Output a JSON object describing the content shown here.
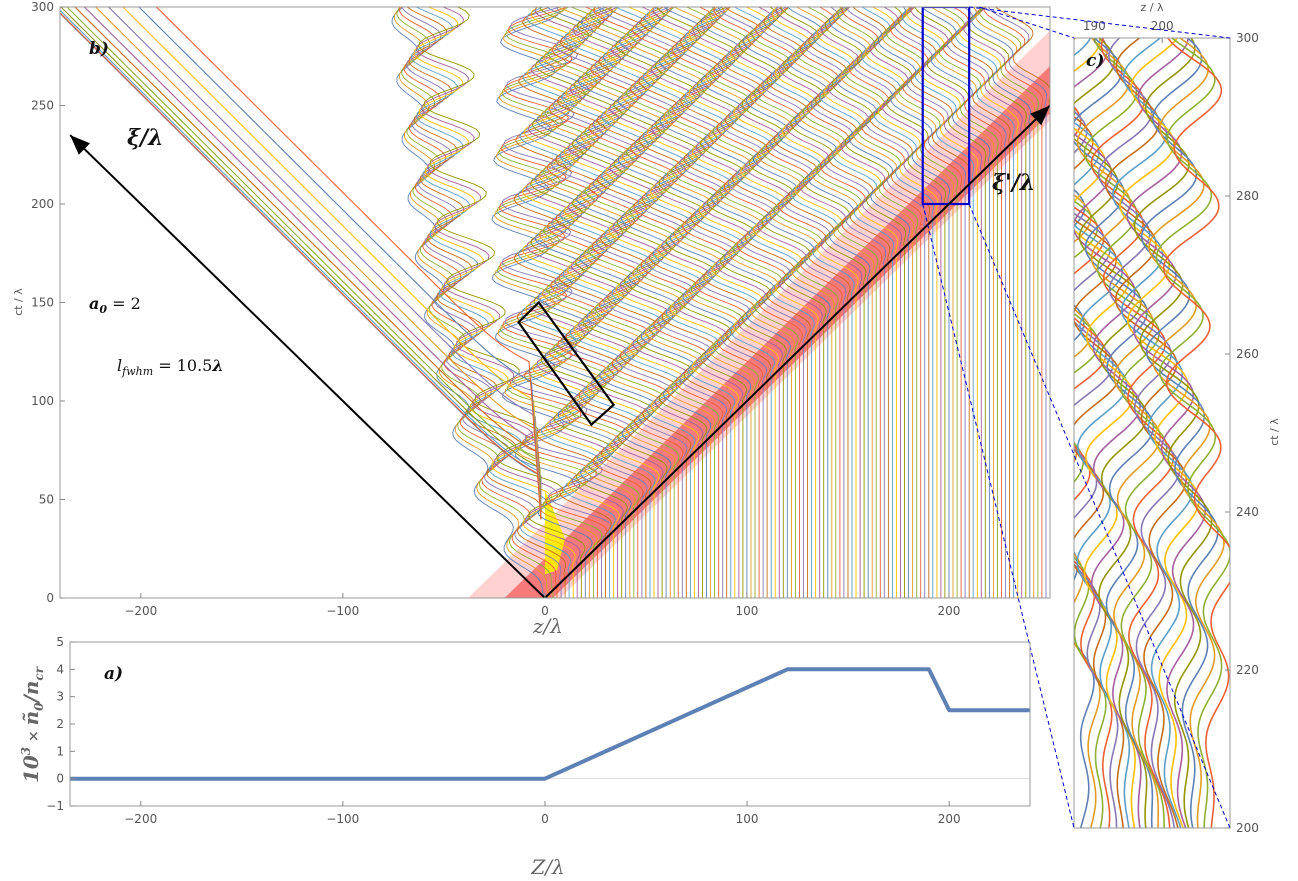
{
  "colors": {
    "trajectory_palette": [
      "#5e81b5",
      "#e19c24",
      "#8fb032",
      "#eb6235",
      "#8778b3",
      "#c56e1a",
      "#5d9ec7",
      "#ffbf00",
      "#a5609d",
      "#929600"
    ],
    "density_line": "#5e81b5",
    "laser_band": "#ff9a9a",
    "laser_core": "#ee3333",
    "yellow_region": "#ffee00",
    "zoom_box": "#0000cc",
    "black_box": "#000000"
  },
  "chart_data": [
    {
      "id": "b",
      "type": "line",
      "panel_label": "b)",
      "xlabel": "z/λ",
      "ylabel": "ct / λ",
      "xlim": [
        -240,
        250
      ],
      "ylim": [
        0,
        300
      ],
      "xticks": [
        "−200",
        "−100",
        "0",
        "100",
        "200"
      ],
      "xtick_values": [
        -200,
        -100,
        0,
        100,
        200
      ],
      "yticks": [
        "0",
        "50",
        "100",
        "150",
        "200",
        "250",
        "300"
      ],
      "ytick_values": [
        0,
        50,
        100,
        150,
        200,
        250,
        300
      ],
      "annotations": {
        "a0_label": "a",
        "a0_sub": "0",
        "a0_value": " = 2",
        "lfwhm_label": "l",
        "lfwhm_sub": "fwhm",
        "lfwhm_value": " = 10.5",
        "lfwhm_unit": "λ",
        "xi_label": "ξ/λ",
        "xi_prime_label": "ξ'/λ"
      },
      "arrows": [
        {
          "from": [
            0,
            0
          ],
          "to": [
            -235,
            235
          ]
        },
        {
          "from": [
            0,
            0
          ],
          "to": [
            250,
            250
          ]
        }
      ],
      "black_box_corners": [
        [
          -13,
          140
        ],
        [
          -3,
          150
        ],
        [
          34,
          98
        ],
        [
          23,
          88
        ]
      ],
      "zoom_box": {
        "z": [
          187,
          210
        ],
        "ct": [
          200,
          300
        ]
      },
      "reflected_bundle": {
        "n_lines": 12,
        "start_ct_range": [
          62,
          120
        ],
        "z_at_top": [
          -240,
          -190
        ]
      },
      "forward_electrons": {
        "z_spacing": 2,
        "z_range": [
          0,
          250
        ],
        "oscillation_period_ct": 30
      }
    },
    {
      "id": "a",
      "type": "line",
      "panel_label": "a)",
      "xlabel": "Z/λ",
      "ylabel_prefix": "10",
      "ylabel_exp": "3",
      "ylabel_times": " × ",
      "ylabel_n": "ñ",
      "ylabel_n_sub": "0",
      "ylabel_slash": "/",
      "ylabel_ncr": "n",
      "ylabel_ncr_sub": "cr",
      "xlim": [
        -235,
        240
      ],
      "ylim": [
        -1,
        5
      ],
      "xticks": [
        "−200",
        "−100",
        "0",
        "100",
        "200"
      ],
      "xtick_values": [
        -200,
        -100,
        0,
        100,
        200
      ],
      "yticks": [
        "−1",
        "0",
        "1",
        "2",
        "3",
        "4",
        "5"
      ],
      "ytick_values": [
        -1,
        0,
        1,
        2,
        3,
        4,
        5
      ],
      "series": [
        {
          "x": [
            -235,
            0,
            120,
            190,
            200,
            240
          ],
          "y": [
            0,
            0,
            4,
            4,
            2.5,
            2.5
          ]
        }
      ]
    },
    {
      "id": "c",
      "type": "line",
      "panel_label": "c)",
      "xlabel": "z / λ",
      "ylabel": "ct / λ",
      "xlim": [
        187,
        210
      ],
      "ylim": [
        200,
        300
      ],
      "xticks": [
        "190",
        "200"
      ],
      "xtick_values": [
        190,
        200
      ],
      "yticks": [
        "200",
        "220",
        "240",
        "260",
        "280",
        "300"
      ],
      "ytick_values": [
        200,
        220,
        240,
        260,
        280,
        300
      ],
      "series_count": 24
    }
  ]
}
